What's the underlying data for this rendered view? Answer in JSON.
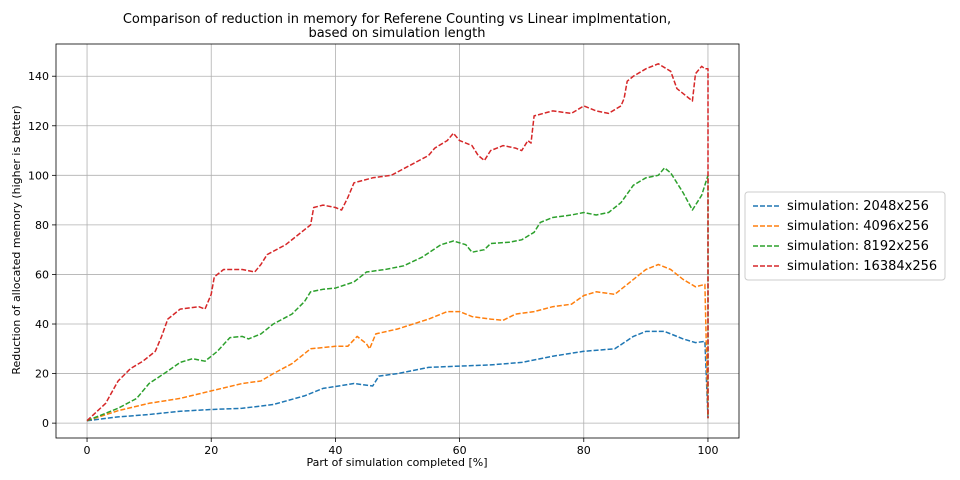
{
  "chart_data": {
    "type": "line",
    "title": "Comparison of reduction in memory for Referene Counting vs Linear implmentation,",
    "subtitle": "based on simulation length",
    "xlabel": "Part of simulation completed [%]",
    "ylabel": "Reduction of allocated memory (higher is better)",
    "xlim": [
      -5,
      105
    ],
    "ylim": [
      -6,
      153
    ],
    "xticks": [
      0,
      20,
      40,
      60,
      80,
      100
    ],
    "yticks": [
      0,
      20,
      40,
      60,
      80,
      100,
      120,
      140
    ],
    "grid": true,
    "legend_position": "right-outside",
    "line_style": "dashed",
    "series": [
      {
        "name": "simulation: 2048x256",
        "color": "#1f77b4",
        "points": [
          [
            0,
            1
          ],
          [
            5,
            2.5
          ],
          [
            10,
            3.5
          ],
          [
            15,
            4.8
          ],
          [
            20,
            5.5
          ],
          [
            25,
            6
          ],
          [
            30,
            7.5
          ],
          [
            35,
            11
          ],
          [
            38,
            14
          ],
          [
            40,
            14.8
          ],
          [
            43,
            16
          ],
          [
            46,
            15
          ],
          [
            47,
            19
          ],
          [
            50,
            20
          ],
          [
            55,
            22.5
          ],
          [
            60,
            23
          ],
          [
            65,
            23.5
          ],
          [
            70,
            24.5
          ],
          [
            75,
            27
          ],
          [
            80,
            29
          ],
          [
            85,
            30
          ],
          [
            88,
            35
          ],
          [
            90,
            37
          ],
          [
            93,
            37
          ],
          [
            96,
            34
          ],
          [
            98,
            32.5
          ],
          [
            99.5,
            33
          ],
          [
            100,
            2
          ]
        ]
      },
      {
        "name": "4096x256",
        "name_full": "simulation: 4096x256",
        "color": "#ff7f0e",
        "points": [
          [
            0,
            1
          ],
          [
            5,
            5
          ],
          [
            10,
            8
          ],
          [
            15,
            10
          ],
          [
            20,
            13
          ],
          [
            25,
            16
          ],
          [
            28,
            17
          ],
          [
            30,
            20
          ],
          [
            33,
            24
          ],
          [
            36,
            30
          ],
          [
            40,
            31
          ],
          [
            42,
            31
          ],
          [
            43.5,
            35
          ],
          [
            45,
            32
          ],
          [
            45.5,
            30
          ],
          [
            46.5,
            36
          ],
          [
            50,
            38
          ],
          [
            55,
            42
          ],
          [
            58,
            45
          ],
          [
            60,
            45
          ],
          [
            62,
            43
          ],
          [
            65,
            42
          ],
          [
            67,
            41.5
          ],
          [
            69,
            44
          ],
          [
            72,
            45
          ],
          [
            75,
            47
          ],
          [
            78,
            48
          ],
          [
            80,
            51.5
          ],
          [
            82,
            53
          ],
          [
            85,
            52
          ],
          [
            87,
            56
          ],
          [
            90,
            62
          ],
          [
            92,
            64
          ],
          [
            94,
            62
          ],
          [
            96,
            58
          ],
          [
            98,
            55
          ],
          [
            99.5,
            56
          ],
          [
            100,
            2
          ]
        ]
      },
      {
        "name": "simulation: 8192x256",
        "color": "#2ca02c",
        "points": [
          [
            0,
            1
          ],
          [
            5,
            6
          ],
          [
            8,
            10
          ],
          [
            10,
            16
          ],
          [
            13,
            21
          ],
          [
            15,
            24.5
          ],
          [
            17,
            26
          ],
          [
            19,
            25
          ],
          [
            21,
            29
          ],
          [
            23,
            34.5
          ],
          [
            25,
            35
          ],
          [
            26,
            34
          ],
          [
            28,
            36
          ],
          [
            30,
            40
          ],
          [
            33,
            44
          ],
          [
            35,
            49
          ],
          [
            36,
            53
          ],
          [
            38,
            54
          ],
          [
            40,
            54.5
          ],
          [
            43,
            57
          ],
          [
            45,
            61
          ],
          [
            48,
            62
          ],
          [
            51,
            63.5
          ],
          [
            54,
            67
          ],
          [
            57,
            72
          ],
          [
            59,
            73.5
          ],
          [
            61,
            72
          ],
          [
            62,
            69
          ],
          [
            64,
            70
          ],
          [
            65,
            72.5
          ],
          [
            68,
            73
          ],
          [
            70,
            74
          ],
          [
            72,
            77
          ],
          [
            73,
            81
          ],
          [
            75,
            83
          ],
          [
            78,
            84
          ],
          [
            80,
            85
          ],
          [
            82,
            84
          ],
          [
            84,
            85
          ],
          [
            86,
            89
          ],
          [
            88,
            96
          ],
          [
            90,
            99
          ],
          [
            92,
            100
          ],
          [
            93,
            103
          ],
          [
            94,
            101
          ],
          [
            96,
            93
          ],
          [
            97.5,
            86
          ],
          [
            99,
            92
          ],
          [
            100,
            100
          ],
          [
            100,
            2
          ]
        ]
      },
      {
        "name": "simulation: 16384x256",
        "color": "#d62728",
        "points": [
          [
            0,
            1
          ],
          [
            3,
            8
          ],
          [
            5,
            17
          ],
          [
            7,
            22
          ],
          [
            9,
            25
          ],
          [
            11,
            29
          ],
          [
            12,
            35
          ],
          [
            13,
            42
          ],
          [
            15,
            46
          ],
          [
            18,
            47
          ],
          [
            19,
            46
          ],
          [
            20,
            52
          ],
          [
            20.5,
            59
          ],
          [
            22,
            62
          ],
          [
            25,
            62
          ],
          [
            27,
            61
          ],
          [
            28,
            64
          ],
          [
            29,
            68
          ],
          [
            32,
            72
          ],
          [
            35,
            78
          ],
          [
            36,
            80
          ],
          [
            36.5,
            87
          ],
          [
            38,
            88
          ],
          [
            40,
            87
          ],
          [
            41,
            86
          ],
          [
            42,
            91
          ],
          [
            43,
            97
          ],
          [
            46,
            99
          ],
          [
            49,
            100
          ],
          [
            52,
            104
          ],
          [
            55,
            108
          ],
          [
            56,
            111
          ],
          [
            58,
            114
          ],
          [
            59,
            117
          ],
          [
            60,
            114
          ],
          [
            62,
            112
          ],
          [
            63,
            108
          ],
          [
            64,
            106
          ],
          [
            65,
            110
          ],
          [
            67,
            112
          ],
          [
            69,
            111
          ],
          [
            70,
            110
          ],
          [
            71,
            114
          ],
          [
            71.5,
            113
          ],
          [
            72,
            124
          ],
          [
            75,
            126
          ],
          [
            78,
            125
          ],
          [
            80,
            128
          ],
          [
            82,
            126
          ],
          [
            84,
            125
          ],
          [
            86,
            128
          ],
          [
            86.5,
            131
          ],
          [
            87,
            138
          ],
          [
            88,
            140
          ],
          [
            90,
            143
          ],
          [
            92,
            145
          ],
          [
            94,
            142
          ],
          [
            95,
            135
          ],
          [
            97,
            131
          ],
          [
            97.5,
            130
          ],
          [
            98,
            141
          ],
          [
            99,
            144
          ],
          [
            99.5,
            143
          ],
          [
            100,
            143
          ],
          [
            100,
            2
          ]
        ]
      }
    ]
  }
}
